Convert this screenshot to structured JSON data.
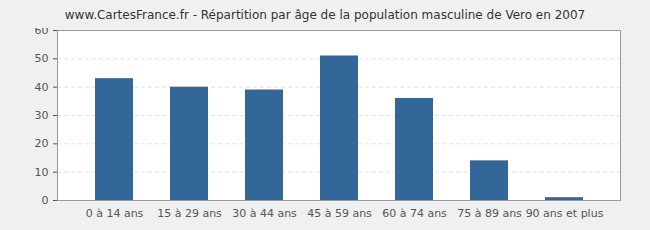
{
  "chart_data": {
    "type": "bar",
    "title": "www.CartesFrance.fr - Répartition par âge de la population masculine de Vero en 2007",
    "categories": [
      "0 à 14 ans",
      "15 à 29 ans",
      "30 à 44 ans",
      "45 à 59 ans",
      "60 à 74 ans",
      "75 à 89 ans",
      "90 ans et plus"
    ],
    "values": [
      43,
      40,
      39,
      51,
      36,
      14,
      1
    ],
    "color": "#336699",
    "ylim": [
      0,
      60
    ],
    "yticks": [
      0,
      10,
      20,
      30,
      40,
      50,
      60
    ],
    "grid": true
  }
}
